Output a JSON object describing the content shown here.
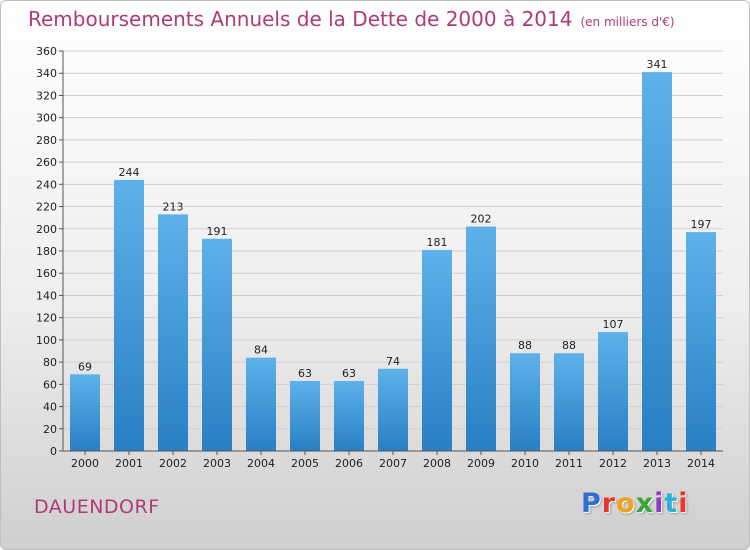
{
  "title": "Remboursements Annuels de la Dette de 2000 à 2014",
  "subtitle": "(en milliers d'€)",
  "town": "DAUENDORF",
  "logo": {
    "letters": [
      "P",
      "r",
      "o",
      "x",
      "i",
      "t",
      "i"
    ],
    "colors": [
      "#2e6fd1",
      "#e8362c",
      "#f0a21c",
      "#3aa637",
      "#8a3fc0",
      "#2bb0d8",
      "#e8362c"
    ]
  },
  "colors": {
    "title": "#b03a78",
    "bar_top": "#5eb1ea",
    "bar_bottom": "#2a7fc3",
    "grid": "#cfcfcf"
  },
  "chart_data": {
    "type": "bar",
    "title": "Remboursements Annuels de la Dette de 2000 à 2014",
    "xlabel": "",
    "ylabel": "",
    "categories": [
      "2000",
      "2001",
      "2002",
      "2003",
      "2004",
      "2005",
      "2006",
      "2007",
      "2008",
      "2009",
      "2010",
      "2011",
      "2012",
      "2013",
      "2014"
    ],
    "values": [
      69,
      244,
      213,
      191,
      84,
      63,
      63,
      74,
      181,
      202,
      88,
      88,
      107,
      341,
      197
    ],
    "ylim": [
      0,
      360
    ],
    "yticks": [
      0,
      20,
      40,
      60,
      80,
      100,
      120,
      140,
      160,
      180,
      200,
      220,
      240,
      260,
      280,
      300,
      320,
      340,
      360
    ],
    "grid": true
  }
}
